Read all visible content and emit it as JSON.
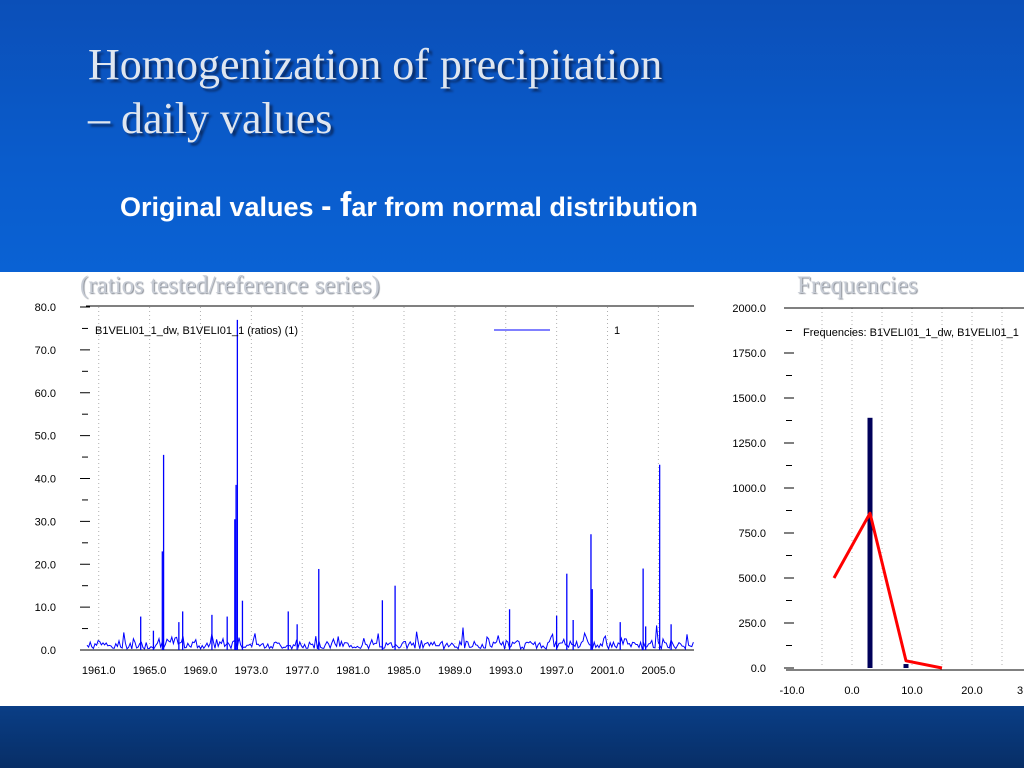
{
  "slide": {
    "title_line1": "Homogenization of precipitation",
    "title_line2": "– daily values",
    "subtitle_a": "Original values ",
    "subtitle_dash": "- ",
    "subtitle_f": "f",
    "subtitle_b": "ar from normal distribution"
  },
  "colors": {
    "top_bg": "#0a5ccc",
    "bottom_bg": "#072e66",
    "series_blue": "#0000ff",
    "bar_navy": "#00005a",
    "freq_line": "#ff0000"
  },
  "chart_data": [
    {
      "type": "line",
      "caption": "(ratios tested/reference series)",
      "legend": {
        "label": "B1VELI01_1_dw, B1VELI01_1 (ratios) (1)",
        "value": "1",
        "placement": "top"
      },
      "xlim": [
        1960.0,
        2007.8
      ],
      "ylim": [
        0,
        80
      ],
      "x_ticks": [
        "1961.0",
        "1965.0",
        "1969.0",
        "1973.0",
        "1977.0",
        "1981.0",
        "1985.0",
        "1989.0",
        "1993.0",
        "1997.0",
        "2001.0",
        "2005.0"
      ],
      "y_ticks": [
        "0.0",
        "10.0",
        "20.0",
        "30.0",
        "40.0",
        "50.0",
        "60.0",
        "70.0",
        "80.0"
      ],
      "grid": "vertical dotted",
      "series": [
        {
          "values_note": "daily ratio series, baseline ~0–3 with spikes",
          "spikes": [
            {
              "x": 1966.1,
              "y": 45.5
            },
            {
              "x": 1966.0,
              "y": 23.0
            },
            {
              "x": 1964.3,
              "y": 7.8
            },
            {
              "x": 1965.3,
              "y": 4.5
            },
            {
              "x": 1967.3,
              "y": 6.5
            },
            {
              "x": 1967.6,
              "y": 9.0
            },
            {
              "x": 1969.9,
              "y": 8.2
            },
            {
              "x": 1971.1,
              "y": 7.8
            },
            {
              "x": 1971.7,
              "y": 30.5
            },
            {
              "x": 1971.9,
              "y": 77.0
            },
            {
              "x": 1971.8,
              "y": 38.5
            },
            {
              "x": 1972.3,
              "y": 11.5
            },
            {
              "x": 1975.9,
              "y": 9.0
            },
            {
              "x": 1978.3,
              "y": 18.9
            },
            {
              "x": 1976.6,
              "y": 6.0
            },
            {
              "x": 1983.3,
              "y": 11.6
            },
            {
              "x": 1984.3,
              "y": 15.0
            },
            {
              "x": 1993.3,
              "y": 9.5
            },
            {
              "x": 1997.0,
              "y": 8.0
            },
            {
              "x": 1997.8,
              "y": 17.8
            },
            {
              "x": 1998.3,
              "y": 7.0
            },
            {
              "x": 1999.7,
              "y": 27.0
            },
            {
              "x": 1999.8,
              "y": 14.2
            },
            {
              "x": 2002.0,
              "y": 6.5
            },
            {
              "x": 2003.8,
              "y": 19.0
            },
            {
              "x": 2005.1,
              "y": 43.2
            },
            {
              "x": 2004.0,
              "y": 5.5
            },
            {
              "x": 2006.0,
              "y": 6.0
            }
          ]
        }
      ]
    },
    {
      "type": "bar",
      "caption": "Frequencies",
      "legend": {
        "label": "Frequencies: B1VELI01_1_dw, B1VELI01_1",
        "placement": "top"
      },
      "xlim": [
        -10,
        30
      ],
      "ylim": [
        0,
        2000
      ],
      "x_ticks": [
        "-10.0",
        "0.0",
        "10.0",
        "20.0",
        "3"
      ],
      "y_ticks": [
        "0.0",
        "250.0",
        "500.0",
        "750.0",
        "1000.0",
        "1250.0",
        "1500.0",
        "1750.0",
        "2000.0"
      ],
      "grid": "vertical dotted",
      "bars": [
        {
          "x": 3.0,
          "value": 1390
        },
        {
          "x": 9.0,
          "value": 22
        }
      ],
      "frequency_line": [
        {
          "x": -3.0,
          "y": 500
        },
        {
          "x": 3.0,
          "y": 860
        },
        {
          "x": 9.0,
          "y": 40
        },
        {
          "x": 15.0,
          "y": 0
        }
      ]
    }
  ]
}
